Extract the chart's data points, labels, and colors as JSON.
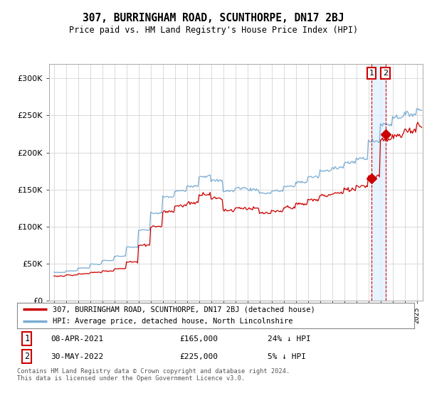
{
  "title": "307, BURRINGHAM ROAD, SCUNTHORPE, DN17 2BJ",
  "subtitle": "Price paid vs. HM Land Registry's House Price Index (HPI)",
  "legend_line1": "307, BURRINGHAM ROAD, SCUNTHORPE, DN17 2BJ (detached house)",
  "legend_line2": "HPI: Average price, detached house, North Lincolnshire",
  "transaction1_date": "08-APR-2021",
  "transaction1_price": 165000,
  "transaction1_note": "24% ↓ HPI",
  "transaction2_date": "30-MAY-2022",
  "transaction2_price": 225000,
  "transaction2_note": "5% ↓ HPI",
  "footer": "Contains HM Land Registry data © Crown copyright and database right 2024.\nThis data is licensed under the Open Government Licence v3.0.",
  "hpi_color": "#7aadd4",
  "price_color": "#cc0000",
  "marker_color": "#cc0000",
  "shade_color": "#ddeeff",
  "background_color": "#ffffff",
  "grid_color": "#cccccc",
  "ylim": [
    0,
    320000
  ],
  "yticks": [
    0,
    50000,
    100000,
    150000,
    200000,
    250000,
    300000
  ],
  "transaction1_year": 2021.27,
  "transaction2_year": 2022.42,
  "fig_width": 6.0,
  "fig_height": 5.6,
  "dpi": 100
}
